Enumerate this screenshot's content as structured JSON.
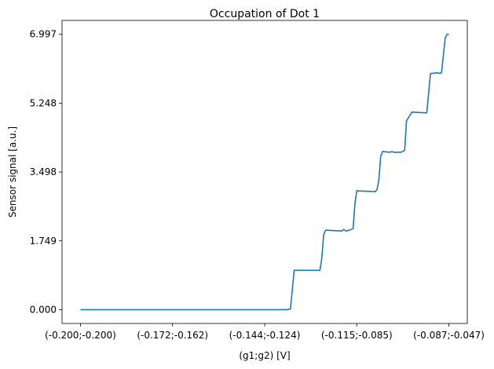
{
  "chart_data": {
    "type": "line",
    "title": "Occupation of Dot 1",
    "xlabel": "(g1;g2) [V]",
    "ylabel": "Sensor signal [a.u.]",
    "x_ticks": [
      {
        "pos": 0.0,
        "label": "(-0.200;-0.200)"
      },
      {
        "pos": 0.25,
        "label": "(-0.172;-0.162)"
      },
      {
        "pos": 0.5,
        "label": "(-0.144;-0.124)"
      },
      {
        "pos": 0.75,
        "label": "(-0.115;-0.085)"
      },
      {
        "pos": 1.0,
        "label": "(-0.087;-0.047)"
      }
    ],
    "y_ticks": [
      0.0,
      1.749,
      3.498,
      5.248,
      6.997
    ],
    "y_tick_labels": [
      "0.000",
      "1.749",
      "3.498",
      "5.248",
      "6.997"
    ],
    "xlim": [
      -0.05,
      1.05
    ],
    "ylim": [
      -0.35,
      7.35
    ],
    "grid": false,
    "series": [
      {
        "color": "#1f77b4",
        "x": [
          0.0,
          0.56,
          0.57,
          0.575,
          0.58,
          0.65,
          0.655,
          0.66,
          0.665,
          0.71,
          0.715,
          0.72,
          0.73,
          0.74,
          0.745,
          0.75,
          0.8,
          0.805,
          0.81,
          0.815,
          0.82,
          0.84,
          0.845,
          0.85,
          0.87,
          0.88,
          0.885,
          0.9,
          0.94,
          0.945,
          0.95,
          0.97,
          0.975,
          0.98,
          0.99,
          0.995,
          1.0
        ],
        "y": [
          0.0,
          0.0,
          0.02,
          0.5,
          1.0,
          1.0,
          1.3,
          1.9,
          2.02,
          2.0,
          2.04,
          2.0,
          2.02,
          2.06,
          2.7,
          3.02,
          3.0,
          3.05,
          3.3,
          3.9,
          4.02,
          4.0,
          4.02,
          4.0,
          4.0,
          4.05,
          4.8,
          5.02,
          5.0,
          5.5,
          6.0,
          6.02,
          6.0,
          6.02,
          6.9,
          7.0,
          6.997
        ]
      }
    ]
  }
}
